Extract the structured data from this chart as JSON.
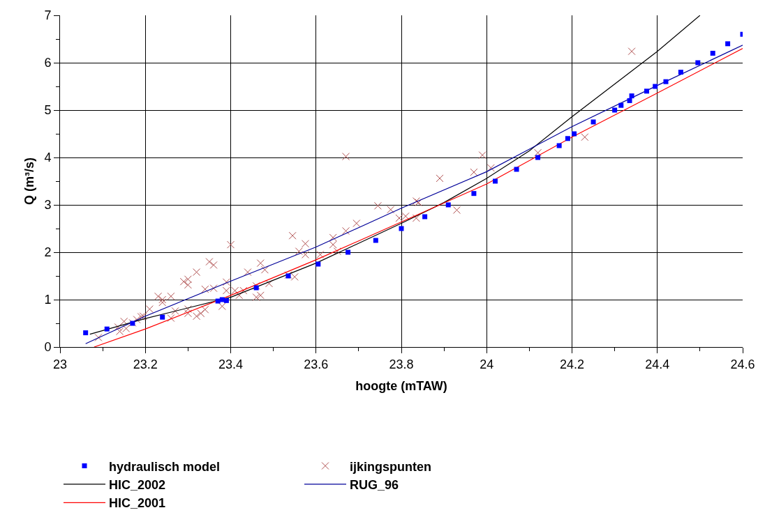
{
  "chart_data": {
    "type": "scatter",
    "xlabel": "hoogte (mTAW)",
    "ylabel": "Q (m³/s)",
    "xlim": [
      23,
      24.6
    ],
    "xticks": [
      23,
      23.2,
      23.4,
      23.6,
      23.8,
      24,
      24.2,
      24.4,
      24.6
    ],
    "ylim": [
      0,
      7
    ],
    "yticks": [
      0,
      1,
      2,
      3,
      4,
      5,
      6,
      7
    ],
    "grid": true,
    "legend": "bottom",
    "series": [
      {
        "name": "hydraulisch model",
        "marker": "square",
        "color": "#0000ff",
        "x": [
          23.06,
          23.11,
          23.17,
          23.24,
          23.37,
          23.38,
          23.39,
          23.46,
          23.535,
          23.605,
          23.675,
          23.74,
          23.8,
          23.855,
          23.91,
          23.97,
          24.02,
          24.07,
          24.12,
          24.17,
          24.19,
          24.205,
          24.25,
          24.3,
          24.315,
          24.335,
          24.34,
          24.375,
          24.395,
          24.42,
          24.455,
          24.495,
          24.53,
          24.565,
          24.6
        ],
        "values": [
          0.3,
          0.38,
          0.5,
          0.63,
          0.97,
          1.0,
          0.98,
          1.25,
          1.5,
          1.75,
          2.0,
          2.25,
          2.5,
          2.75,
          3.0,
          3.24,
          3.5,
          3.75,
          4.0,
          4.25,
          4.4,
          4.5,
          4.75,
          5.0,
          5.1,
          5.2,
          5.3,
          5.4,
          5.5,
          5.6,
          5.8,
          6.0,
          6.2,
          6.4,
          6.6
        ]
      },
      {
        "name": "ijkingspunten",
        "marker": "cross",
        "color": "#b05050",
        "x": [
          23.09,
          23.136,
          23.14,
          23.155,
          23.15,
          23.17,
          23.18,
          23.19,
          23.195,
          23.21,
          23.23,
          23.24,
          23.24,
          23.26,
          23.26,
          23.27,
          23.29,
          23.3,
          23.3,
          23.3,
          23.3,
          23.32,
          23.32,
          23.33,
          23.34,
          23.34,
          23.35,
          23.36,
          23.36,
          23.38,
          23.39,
          23.39,
          23.4,
          23.41,
          23.42,
          23.43,
          23.44,
          23.46,
          23.46,
          23.47,
          23.47,
          23.48,
          23.49,
          23.535,
          23.545,
          23.55,
          23.56,
          23.575,
          23.575,
          23.61,
          23.64,
          23.64,
          23.65,
          23.67,
          23.67,
          23.695,
          23.745,
          23.775,
          23.795,
          23.81,
          23.835,
          23.835,
          23.84,
          23.89,
          23.93,
          23.97,
          23.99,
          24.01,
          24.12,
          24.23,
          24.34
        ],
        "values": [
          0.2,
          0.42,
          0.33,
          0.39,
          0.54,
          0.51,
          0.58,
          0.64,
          0.65,
          0.8,
          1.07,
          0.94,
          1.0,
          1.07,
          0.61,
          0.76,
          1.38,
          1.31,
          1.43,
          0.71,
          0.8,
          1.58,
          0.65,
          0.71,
          0.79,
          1.22,
          1.8,
          1.73,
          1.24,
          0.86,
          1.37,
          1.19,
          2.16,
          1.19,
          1.09,
          1.19,
          1.58,
          1.29,
          1.05,
          1.77,
          1.09,
          1.63,
          1.34,
          1.52,
          2.35,
          1.48,
          2.02,
          2.18,
          1.95,
          1.95,
          2.31,
          2.16,
          2.02,
          4.02,
          2.45,
          2.61,
          2.98,
          2.9,
          2.72,
          2.76,
          2.72,
          3.08,
          3.05,
          3.56,
          2.89,
          3.69,
          4.05,
          3.78,
          4.1,
          4.43,
          6.24
        ]
      },
      {
        "name": "HIC_2002",
        "type": "line",
        "marker": "none",
        "line_style": "solid",
        "color": "#000000",
        "x": [
          23.07,
          23.2,
          23.4,
          23.6,
          23.8,
          23.9,
          24.0,
          24.1,
          24.2,
          24.4,
          24.5
        ],
        "values": [
          0.27,
          0.6,
          1.05,
          1.77,
          2.61,
          3.05,
          3.56,
          4.14,
          4.86,
          6.24,
          7.0
        ]
      },
      {
        "name": "RUG_96",
        "type": "line",
        "marker": "none",
        "line_style": "solid",
        "color": "#000099",
        "x": [
          23.06,
          23.2,
          23.4,
          23.6,
          23.8,
          24.0,
          24.2,
          24.4,
          24.6
        ],
        "values": [
          0.07,
          0.65,
          1.39,
          2.11,
          2.93,
          3.7,
          4.65,
          5.52,
          6.37
        ]
      },
      {
        "name": "HIC_2001",
        "type": "line",
        "marker": "none",
        "line_style": "solid",
        "color": "#ff0000",
        "x": [
          23.08,
          23.2,
          23.4,
          23.6,
          23.8,
          24.0,
          24.2,
          24.4,
          24.6
        ],
        "values": [
          0.0,
          0.38,
          1.09,
          1.84,
          2.64,
          3.44,
          4.43,
          5.36,
          6.3
        ]
      }
    ]
  }
}
